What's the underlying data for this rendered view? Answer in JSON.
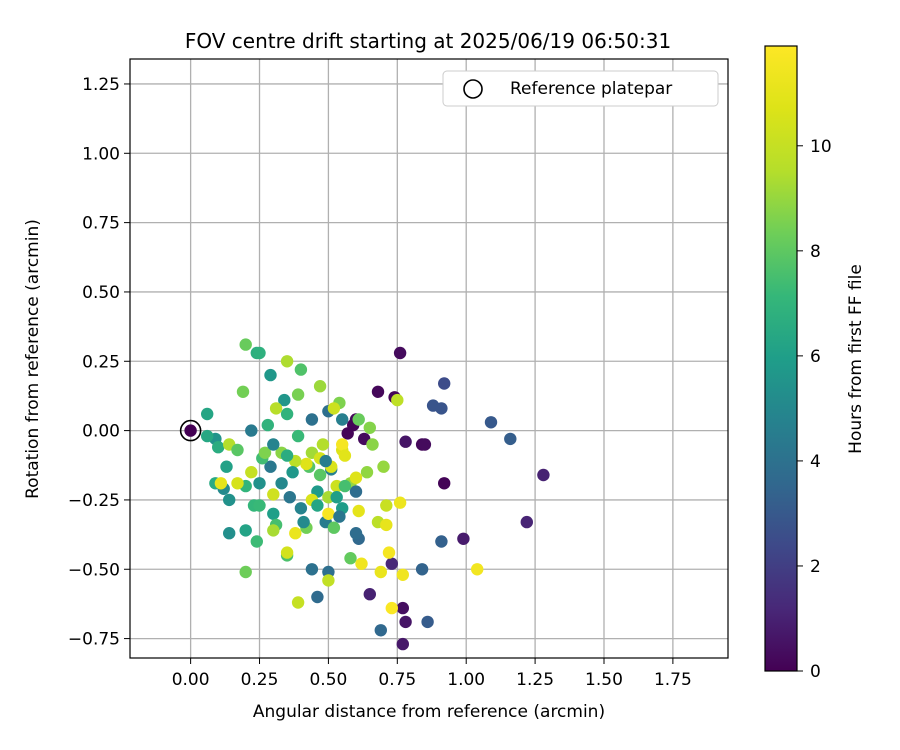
{
  "chart_data": {
    "type": "scatter",
    "title": "FOV centre drift starting at 2025/06/19 06:50:31",
    "xlabel": "Angular distance from reference (arcmin)",
    "ylabel": "Rotation from reference (arcmin)",
    "xlim": [
      -0.22,
      1.95
    ],
    "ylim": [
      -0.82,
      1.34
    ],
    "xticks": [
      "0.00",
      "0.25",
      "0.50",
      "0.75",
      "1.00",
      "1.25",
      "1.50",
      "1.75"
    ],
    "yticks": [
      "−0.75",
      "−0.50",
      "−0.25",
      "0.00",
      "0.25",
      "0.50",
      "0.75",
      "1.00",
      "1.25"
    ],
    "grid": true,
    "legend": {
      "position": "top-right",
      "entries": [
        "Reference platepar"
      ]
    },
    "colorbar": {
      "label": "Hours from first FF file",
      "range": [
        0,
        11.9
      ],
      "ticks": [
        "0",
        "2",
        "4",
        "6",
        "8",
        "10"
      ],
      "colormap": "viridis"
    },
    "reference_point": {
      "x": 0.0,
      "y": 0.0,
      "name": "Reference platepar"
    },
    "series": [
      {
        "points": [
          {
            "x": 0.0,
            "y": 0.0,
            "h": 0.0
          },
          {
            "x": 0.76,
            "y": 0.28,
            "h": 0.3
          },
          {
            "x": 0.68,
            "y": 0.14,
            "h": 0.2
          },
          {
            "x": 0.74,
            "y": 0.12,
            "h": 0.1
          },
          {
            "x": 0.6,
            "y": 0.04,
            "h": 0.2
          },
          {
            "x": 0.59,
            "y": 0.02,
            "h": 0.1
          },
          {
            "x": 0.57,
            "y": -0.01,
            "h": 0.1
          },
          {
            "x": 0.63,
            "y": -0.03,
            "h": 0.3
          },
          {
            "x": 0.78,
            "y": -0.04,
            "h": 0.6
          },
          {
            "x": 0.84,
            "y": -0.05,
            "h": 0.2
          },
          {
            "x": 0.85,
            "y": -0.05,
            "h": 0.3
          },
          {
            "x": 0.92,
            "y": -0.19,
            "h": 0.1
          },
          {
            "x": 0.99,
            "y": -0.39,
            "h": 0.8
          },
          {
            "x": 0.65,
            "y": -0.59,
            "h": 1.0
          },
          {
            "x": 0.77,
            "y": -0.64,
            "h": 0.4
          },
          {
            "x": 0.78,
            "y": -0.69,
            "h": 0.6
          },
          {
            "x": 0.77,
            "y": -0.77,
            "h": 0.7
          },
          {
            "x": 1.28,
            "y": -0.16,
            "h": 1.0
          },
          {
            "x": 1.22,
            "y": -0.33,
            "h": 1.1
          },
          {
            "x": 0.73,
            "y": -0.48,
            "h": 1.2
          },
          {
            "x": 0.92,
            "y": 0.17,
            "h": 2.5
          },
          {
            "x": 0.88,
            "y": 0.09,
            "h": 2.8
          },
          {
            "x": 0.91,
            "y": 0.08,
            "h": 2.8
          },
          {
            "x": 1.09,
            "y": 0.03,
            "h": 3.0
          },
          {
            "x": 1.16,
            "y": -0.03,
            "h": 3.2
          },
          {
            "x": 0.91,
            "y": -0.4,
            "h": 3.3
          },
          {
            "x": 0.84,
            "y": -0.5,
            "h": 3.4
          },
          {
            "x": 0.86,
            "y": -0.69,
            "h": 3.1
          },
          {
            "x": 0.69,
            "y": -0.72,
            "h": 3.6
          },
          {
            "x": 0.46,
            "y": -0.6,
            "h": 3.7
          },
          {
            "x": 0.5,
            "y": -0.51,
            "h": 3.9
          },
          {
            "x": 0.44,
            "y": -0.5,
            "h": 4.0
          },
          {
            "x": 0.61,
            "y": -0.39,
            "h": 3.6
          },
          {
            "x": 0.6,
            "y": -0.37,
            "h": 3.8
          },
          {
            "x": 0.5,
            "y": 0.07,
            "h": 3.9
          },
          {
            "x": 0.44,
            "y": 0.04,
            "h": 4.0
          },
          {
            "x": 0.36,
            "y": -0.24,
            "h": 4.2
          },
          {
            "x": 0.29,
            "y": -0.13,
            "h": 4.3
          },
          {
            "x": 0.22,
            "y": 0.0,
            "h": 4.4
          },
          {
            "x": 0.49,
            "y": -0.33,
            "h": 4.5
          },
          {
            "x": 0.55,
            "y": 0.04,
            "h": 4.6
          },
          {
            "x": 0.51,
            "y": -0.14,
            "h": 4.7
          },
          {
            "x": 0.4,
            "y": -0.28,
            "h": 4.8
          },
          {
            "x": 0.33,
            "y": -0.19,
            "h": 5.0
          },
          {
            "x": 0.12,
            "y": -0.21,
            "h": 5.1
          },
          {
            "x": 0.14,
            "y": -0.37,
            "h": 5.3
          },
          {
            "x": 0.14,
            "y": -0.25,
            "h": 5.4
          },
          {
            "x": 0.09,
            "y": -0.03,
            "h": 5.5
          },
          {
            "x": 0.34,
            "y": 0.11,
            "h": 5.6
          },
          {
            "x": 0.29,
            "y": 0.2,
            "h": 5.7
          },
          {
            "x": 0.46,
            "y": -0.22,
            "h": 5.8
          },
          {
            "x": 0.55,
            "y": -0.28,
            "h": 5.9
          },
          {
            "x": 0.3,
            "y": -0.3,
            "h": 6.0
          },
          {
            "x": 0.13,
            "y": -0.13,
            "h": 6.1
          },
          {
            "x": 0.2,
            "y": -0.36,
            "h": 6.2
          },
          {
            "x": 0.06,
            "y": 0.06,
            "h": 6.3
          },
          {
            "x": 0.06,
            "y": -0.02,
            "h": 6.4
          },
          {
            "x": 0.09,
            "y": -0.19,
            "h": 6.5
          },
          {
            "x": 0.1,
            "y": -0.06,
            "h": 6.6
          },
          {
            "x": 0.24,
            "y": 0.28,
            "h": 6.7
          },
          {
            "x": 0.25,
            "y": 0.28,
            "h": 6.8
          },
          {
            "x": 0.35,
            "y": 0.06,
            "h": 6.9
          },
          {
            "x": 0.2,
            "y": -0.2,
            "h": 7.0
          },
          {
            "x": 0.23,
            "y": -0.27,
            "h": 7.1
          },
          {
            "x": 0.25,
            "y": -0.27,
            "h": 7.2
          },
          {
            "x": 0.24,
            "y": -0.4,
            "h": 7.3
          },
          {
            "x": 0.26,
            "y": -0.1,
            "h": 7.4
          },
          {
            "x": 0.31,
            "y": -0.34,
            "h": 7.5
          },
          {
            "x": 0.35,
            "y": -0.45,
            "h": 7.6
          },
          {
            "x": 0.4,
            "y": 0.22,
            "h": 7.7
          },
          {
            "x": 0.43,
            "y": -0.13,
            "h": 7.8
          },
          {
            "x": 0.47,
            "y": -0.16,
            "h": 7.9
          },
          {
            "x": 0.52,
            "y": -0.35,
            "h": 8.0
          },
          {
            "x": 0.58,
            "y": -0.46,
            "h": 8.1
          },
          {
            "x": 0.2,
            "y": 0.31,
            "h": 8.2
          },
          {
            "x": 0.2,
            "y": -0.51,
            "h": 8.3
          },
          {
            "x": 0.19,
            "y": 0.14,
            "h": 8.4
          },
          {
            "x": 0.39,
            "y": 0.13,
            "h": 8.5
          },
          {
            "x": 0.54,
            "y": 0.1,
            "h": 8.6
          },
          {
            "x": 0.65,
            "y": 0.01,
            "h": 8.7
          },
          {
            "x": 0.66,
            "y": -0.05,
            "h": 8.8
          },
          {
            "x": 0.64,
            "y": -0.15,
            "h": 8.9
          },
          {
            "x": 0.58,
            "y": -0.19,
            "h": 9.0
          },
          {
            "x": 0.47,
            "y": 0.16,
            "h": 9.1
          },
          {
            "x": 0.44,
            "y": -0.08,
            "h": 9.2
          },
          {
            "x": 0.5,
            "y": -0.24,
            "h": 9.3
          },
          {
            "x": 0.35,
            "y": 0.25,
            "h": 9.4
          },
          {
            "x": 0.14,
            "y": -0.05,
            "h": 9.5
          },
          {
            "x": 0.31,
            "y": 0.08,
            "h": 9.6
          },
          {
            "x": 0.68,
            "y": -0.33,
            "h": 9.7
          },
          {
            "x": 0.75,
            "y": 0.11,
            "h": 9.8
          },
          {
            "x": 0.5,
            "y": -0.54,
            "h": 9.9
          },
          {
            "x": 0.39,
            "y": -0.62,
            "h": 10.0
          },
          {
            "x": 0.71,
            "y": -0.27,
            "h": 10.1
          },
          {
            "x": 0.53,
            "y": -0.2,
            "h": 10.2
          },
          {
            "x": 0.3,
            "y": -0.23,
            "h": 10.3
          },
          {
            "x": 0.35,
            "y": -0.44,
            "h": 10.4
          },
          {
            "x": 0.17,
            "y": -0.19,
            "h": 10.5
          },
          {
            "x": 0.51,
            "y": -0.13,
            "h": 10.6
          },
          {
            "x": 0.55,
            "y": -0.07,
            "h": 10.7
          },
          {
            "x": 0.6,
            "y": -0.17,
            "h": 10.8
          },
          {
            "x": 0.61,
            "y": -0.29,
            "h": 11.0
          },
          {
            "x": 0.69,
            "y": -0.51,
            "h": 11.2
          },
          {
            "x": 0.71,
            "y": -0.34,
            "h": 11.1
          },
          {
            "x": 0.76,
            "y": -0.26,
            "h": 11.3
          },
          {
            "x": 0.77,
            "y": -0.52,
            "h": 11.4
          },
          {
            "x": 1.04,
            "y": -0.5,
            "h": 11.5
          },
          {
            "x": 0.72,
            "y": -0.44,
            "h": 11.6
          },
          {
            "x": 0.73,
            "y": -0.64,
            "h": 11.8
          },
          {
            "x": 0.5,
            "y": -0.3,
            "h": 11.7
          },
          {
            "x": 0.55,
            "y": -0.05,
            "h": 11.6
          },
          {
            "x": 0.62,
            "y": -0.48,
            "h": 11.4
          },
          {
            "x": 0.38,
            "y": -0.37,
            "h": 11.2
          },
          {
            "x": 0.11,
            "y": -0.19,
            "h": 11.0
          },
          {
            "x": 0.56,
            "y": -0.09,
            "h": 10.9
          },
          {
            "x": 0.42,
            "y": -0.12,
            "h": 10.8
          },
          {
            "x": 0.44,
            "y": -0.25,
            "h": 10.6
          },
          {
            "x": 0.47,
            "y": -0.1,
            "h": 10.4
          },
          {
            "x": 0.52,
            "y": 0.08,
            "h": 10.2
          },
          {
            "x": 0.22,
            "y": -0.15,
            "h": 10.0
          },
          {
            "x": 0.38,
            "y": -0.11,
            "h": 9.7
          },
          {
            "x": 0.48,
            "y": -0.05,
            "h": 9.5
          },
          {
            "x": 0.3,
            "y": -0.36,
            "h": 9.3
          },
          {
            "x": 0.7,
            "y": -0.13,
            "h": 9.0
          },
          {
            "x": 0.33,
            "y": -0.08,
            "h": 8.8
          },
          {
            "x": 0.27,
            "y": -0.08,
            "h": 8.6
          },
          {
            "x": 0.42,
            "y": -0.35,
            "h": 8.4
          },
          {
            "x": 0.61,
            "y": 0.04,
            "h": 8.2
          },
          {
            "x": 0.17,
            "y": -0.07,
            "h": 7.9
          },
          {
            "x": 0.56,
            "y": -0.2,
            "h": 7.5
          },
          {
            "x": 0.39,
            "y": -0.02,
            "h": 7.2
          },
          {
            "x": 0.28,
            "y": 0.02,
            "h": 6.9
          },
          {
            "x": 0.35,
            "y": -0.09,
            "h": 6.6
          },
          {
            "x": 0.46,
            "y": -0.27,
            "h": 6.3
          },
          {
            "x": 0.53,
            "y": -0.24,
            "h": 6.0
          },
          {
            "x": 0.37,
            "y": -0.15,
            "h": 5.7
          },
          {
            "x": 0.25,
            "y": -0.19,
            "h": 5.4
          },
          {
            "x": 0.41,
            "y": -0.33,
            "h": 5.1
          },
          {
            "x": 0.3,
            "y": -0.05,
            "h": 4.8
          },
          {
            "x": 0.49,
            "y": -0.11,
            "h": 4.5
          },
          {
            "x": 0.54,
            "y": -0.31,
            "h": 4.2
          },
          {
            "x": 0.6,
            "y": -0.22,
            "h": 3.8
          }
        ]
      }
    ]
  }
}
